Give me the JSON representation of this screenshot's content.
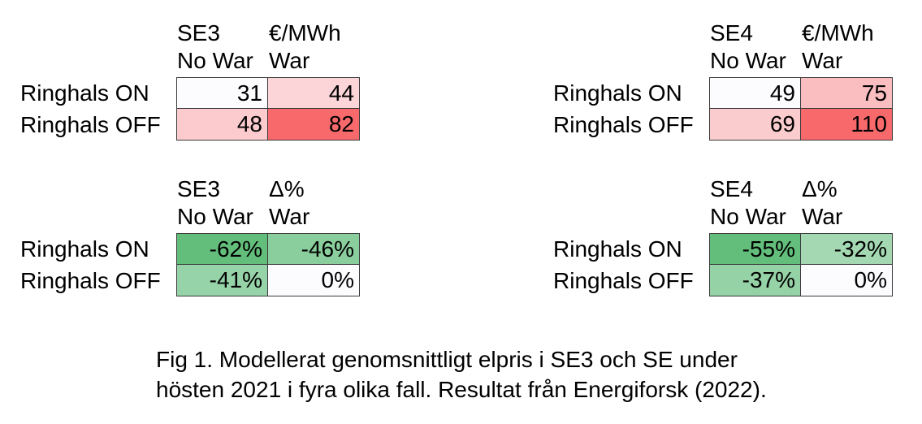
{
  "page": {
    "background": "#ffffff",
    "text_color": "#000000",
    "grid_border_color": "#3a3a3a",
    "heat_red_max": "#F8696B",
    "heat_green_max": "#63BE7B",
    "heat_neutral": "#FCFCFE"
  },
  "tables": [
    {
      "id": "se3-price",
      "region": "SE3",
      "unit": "€/MWh",
      "col_headers": [
        "No War",
        "War"
      ],
      "row_headers": [
        "Ringhals ON",
        "Ringhals OFF"
      ],
      "rows": [
        [
          {
            "value": "31",
            "color": "#FCFCFE"
          },
          {
            "value": "44",
            "color": "#FBD5D7"
          }
        ],
        [
          {
            "value": "48",
            "color": "#FBCBCE"
          },
          {
            "value": "82",
            "color": "#F8696B"
          }
        ]
      ]
    },
    {
      "id": "se4-price",
      "region": "SE4",
      "unit": "€/MWh",
      "col_headers": [
        "No War",
        "War"
      ],
      "row_headers": [
        "Ringhals ON",
        "Ringhals OFF"
      ],
      "rows": [
        [
          {
            "value": "49",
            "color": "#FCFCFE"
          },
          {
            "value": "75",
            "color": "#FABDC0"
          }
        ],
        [
          {
            "value": "69",
            "color": "#FBCCCE"
          },
          {
            "value": "110",
            "color": "#F8696B"
          }
        ]
      ]
    },
    {
      "id": "se3-delta",
      "region": "SE3",
      "unit": "Δ%",
      "col_headers": [
        "No War",
        "War"
      ],
      "row_headers": [
        "Ringhals ON",
        "Ringhals OFF"
      ],
      "rows": [
        [
          {
            "value": "-62%",
            "color": "#63BE7B"
          },
          {
            "value": "-46%",
            "color": "#8ACE9D"
          }
        ],
        [
          {
            "value": "-41%",
            "color": "#97D3A8"
          },
          {
            "value": "0%",
            "color": "#FCFCFE"
          }
        ]
      ]
    },
    {
      "id": "se4-delta",
      "region": "SE4",
      "unit": "Δ%",
      "col_headers": [
        "No War",
        "War"
      ],
      "row_headers": [
        "Ringhals ON",
        "Ringhals OFF"
      ],
      "rows": [
        [
          {
            "value": "-55%",
            "color": "#63BE7B"
          },
          {
            "value": "-32%",
            "color": "#A3D8B2"
          }
        ],
        [
          {
            "value": "-37%",
            "color": "#95D2A6"
          },
          {
            "value": "0%",
            "color": "#FCFCFE"
          }
        ]
      ]
    }
  ],
  "caption": {
    "line1": "Fig 1. Modellerat genomsnittligt elpris i SE3 och SE under",
    "line2": "hösten 2021 i fyra olika fall. Resultat från Energiforsk (2022)."
  },
  "chart_data": [
    {
      "type": "heatmap",
      "title": "SE3 €/MWh",
      "region": "SE3",
      "unit": "€/MWh",
      "columns": [
        "No War",
        "War"
      ],
      "rows": [
        "Ringhals ON",
        "Ringhals OFF"
      ],
      "values": [
        [
          31,
          44
        ],
        [
          48,
          82
        ]
      ],
      "colorscale": "white-to-red",
      "legend_position": "none",
      "grid": true
    },
    {
      "type": "heatmap",
      "title": "SE4 €/MWh",
      "region": "SE4",
      "unit": "€/MWh",
      "columns": [
        "No War",
        "War"
      ],
      "rows": [
        "Ringhals ON",
        "Ringhals OFF"
      ],
      "values": [
        [
          49,
          75
        ],
        [
          69,
          110
        ]
      ],
      "colorscale": "white-to-red",
      "legend_position": "none",
      "grid": true
    },
    {
      "type": "heatmap",
      "title": "SE3 Δ%",
      "region": "SE3",
      "unit": "Δ%",
      "columns": [
        "No War",
        "War"
      ],
      "rows": [
        "Ringhals ON",
        "Ringhals OFF"
      ],
      "values": [
        [
          -62,
          -46
        ],
        [
          -41,
          0
        ]
      ],
      "value_format": "percent",
      "colorscale": "green-to-white",
      "legend_position": "none",
      "grid": true
    },
    {
      "type": "heatmap",
      "title": "SE4 Δ%",
      "region": "SE4",
      "unit": "Δ%",
      "columns": [
        "No War",
        "War"
      ],
      "rows": [
        "Ringhals ON",
        "Ringhals OFF"
      ],
      "values": [
        [
          -55,
          -32
        ],
        [
          -37,
          0
        ]
      ],
      "value_format": "percent",
      "colorscale": "green-to-white",
      "legend_position": "none",
      "grid": true
    }
  ]
}
